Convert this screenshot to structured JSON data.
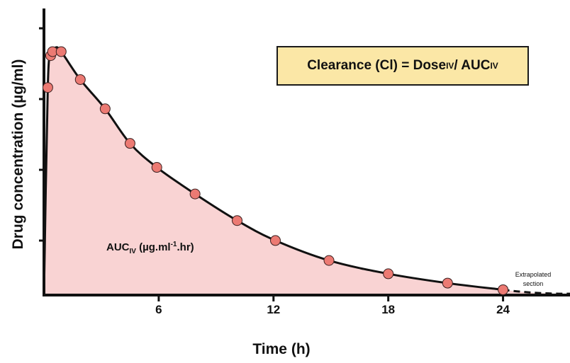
{
  "chart_data": {
    "type": "line",
    "xlabel": "Time (h)",
    "ylabel": "Drug concentration (µg/ml)",
    "x_ticks": [
      6,
      12,
      18,
      24
    ],
    "xlim": [
      0,
      27.5
    ],
    "ylim": [
      0,
      100
    ],
    "grid": false,
    "points": [
      {
        "x": 0.2,
        "y": 78
      },
      {
        "x": 0.35,
        "y": 90
      },
      {
        "x": 0.45,
        "y": 91.5
      },
      {
        "x": 0.9,
        "y": 91.5
      },
      {
        "x": 1.9,
        "y": 81
      },
      {
        "x": 3.2,
        "y": 70
      },
      {
        "x": 4.5,
        "y": 57
      },
      {
        "x": 5.9,
        "y": 48
      },
      {
        "x": 7.9,
        "y": 38
      },
      {
        "x": 10.1,
        "y": 28
      },
      {
        "x": 12.1,
        "y": 20.5
      },
      {
        "x": 14.9,
        "y": 13
      },
      {
        "x": 18.0,
        "y": 8
      },
      {
        "x": 21.1,
        "y": 4.5
      },
      {
        "x": 24.0,
        "y": 2
      }
    ],
    "extrapolated_to_x": 27.5,
    "extrapolated_to_y": 0.5,
    "annotations": {
      "equation": {
        "text": "Clearance (Cl) = Dose",
        "sub1": "IV",
        "mid": " / AUC",
        "sub2": "IV"
      },
      "area_label": {
        "text": "AUC",
        "sub": "IV",
        "rest": " (µg.ml",
        "sup": "-1",
        "end": ".hr)"
      },
      "extrapolated": [
        "Extrapolated",
        "section"
      ]
    }
  },
  "colors": {
    "area_fill": "#f9d3d3",
    "point_fill": "#ec7a73",
    "line": "#111111",
    "box_fill": "#fbe7a6"
  }
}
